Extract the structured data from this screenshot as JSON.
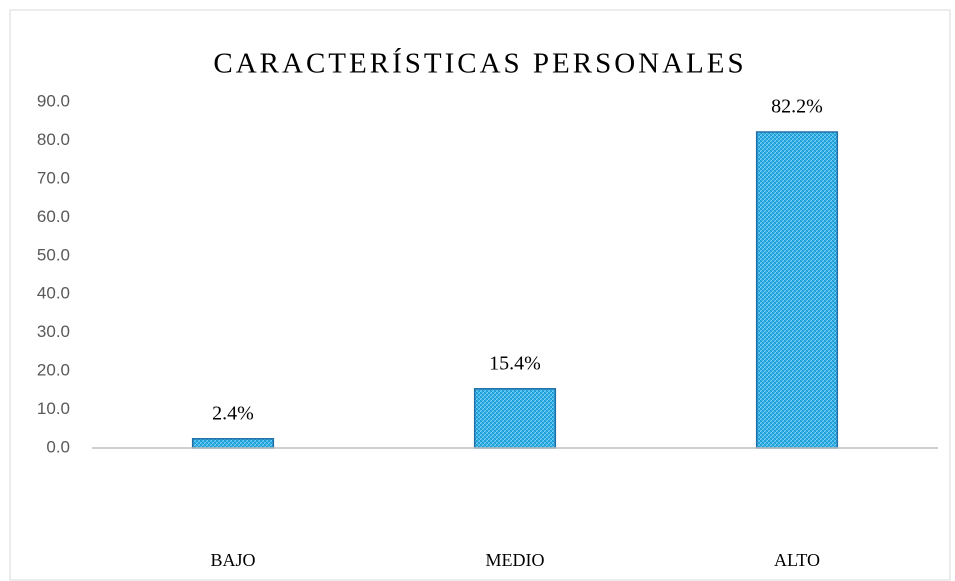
{
  "chart_data": {
    "type": "bar",
    "title": "CARACTERÍSTICAS PERSONALES",
    "categories": [
      "BAJO",
      "MEDIO",
      "ALTO"
    ],
    "values": [
      2.4,
      15.4,
      82.2
    ],
    "value_labels": [
      "2.4%",
      "15.4%",
      "82.2%"
    ],
    "color": "#2aaee8",
    "ylim": [
      0,
      90
    ],
    "yticks": [
      {
        "value": 0,
        "label": "0.0"
      },
      {
        "value": 10,
        "label": "10.0"
      },
      {
        "value": 20,
        "label": "20.0"
      },
      {
        "value": 30,
        "label": "30.0"
      },
      {
        "value": 40,
        "label": "40.0"
      },
      {
        "value": 50,
        "label": "50.0"
      },
      {
        "value": 60,
        "label": "60.0"
      },
      {
        "value": 70,
        "label": "70.0"
      },
      {
        "value": 80,
        "label": "80.0"
      },
      {
        "value": 90,
        "label": "90.0"
      }
    ],
    "grid": false
  }
}
